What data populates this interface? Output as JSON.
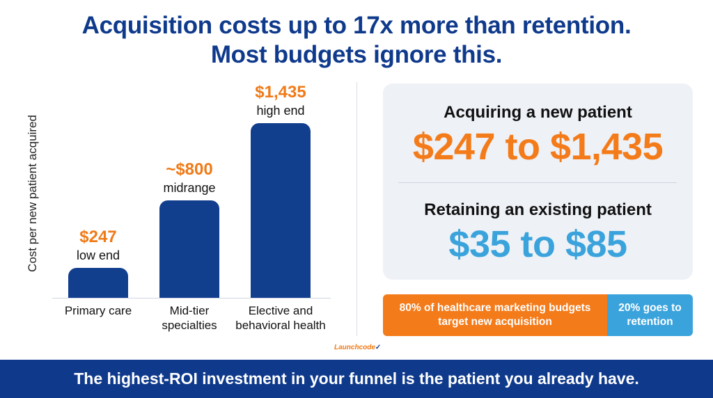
{
  "title": {
    "line1": "Acquisition costs up to 17x more than retention.",
    "line2": "Most budgets ignore this."
  },
  "chart_data": {
    "type": "bar",
    "ylabel": "Cost per new patient acquired",
    "categories": [
      "Primary care",
      "Mid-tier specialties",
      "Elective and behavioral health"
    ],
    "category_lines": [
      [
        "Primary care"
      ],
      [
        "Mid-tier",
        "specialties"
      ],
      [
        "Elective and",
        "behavioral health"
      ]
    ],
    "values": [
      247,
      800,
      1435
    ],
    "value_labels": [
      "$247",
      "~$800",
      "$1,435"
    ],
    "notes": [
      "low end",
      "midrange",
      "high end"
    ],
    "ylim": [
      0,
      1500
    ],
    "grid": false,
    "colors": {
      "bar": "#123e8e",
      "value_label": "#f07a17"
    }
  },
  "card": {
    "acquire_heading": "Acquiring a new patient",
    "acquire_range": "$247 to $1,435",
    "retain_heading": "Retaining an existing patient",
    "retain_range": "$35 to $85"
  },
  "split": {
    "acquisition_text": "80% of healthcare marketing budgets target new acquisition",
    "retention_text": "20% goes to retention",
    "acquisition_percent": 80,
    "retention_percent": 20
  },
  "logo": {
    "name": "Launchcode"
  },
  "footer": {
    "text": "The highest-ROI investment in your funnel is the patient you already have."
  },
  "colors": {
    "navy": "#0f3a8c",
    "orange": "#f47b1a",
    "sky": "#3ba3dc"
  }
}
